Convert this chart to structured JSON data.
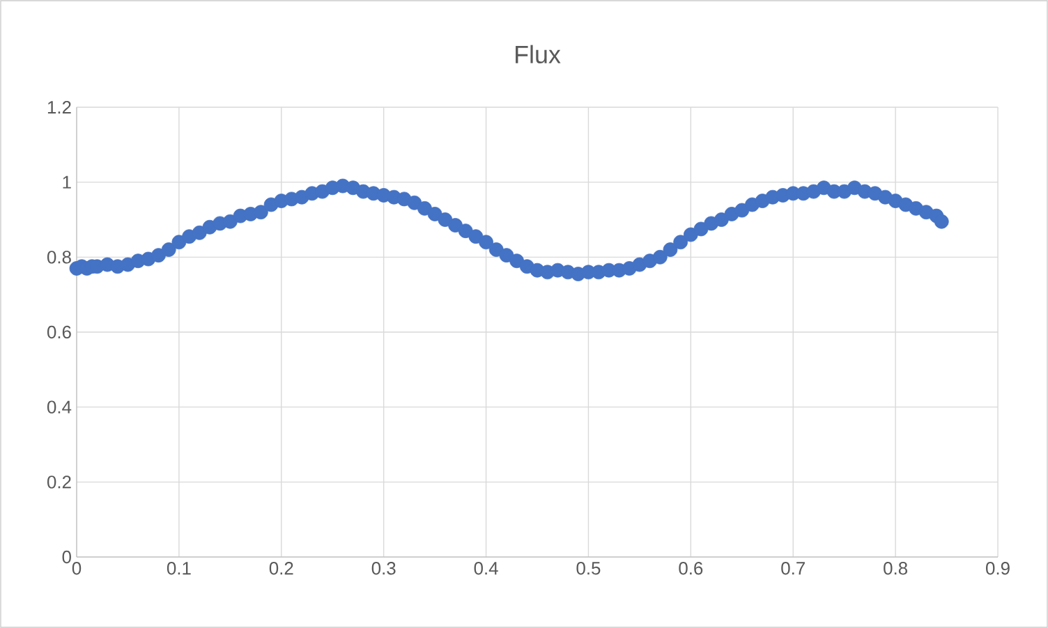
{
  "chart_data": {
    "type": "scatter",
    "title": "Flux",
    "x": [
      0.0,
      0.005,
      0.01,
      0.015,
      0.02,
      0.03,
      0.04,
      0.05,
      0.06,
      0.07,
      0.08,
      0.09,
      0.1,
      0.11,
      0.12,
      0.13,
      0.14,
      0.15,
      0.16,
      0.17,
      0.18,
      0.19,
      0.2,
      0.21,
      0.22,
      0.23,
      0.24,
      0.25,
      0.26,
      0.27,
      0.28,
      0.29,
      0.3,
      0.31,
      0.32,
      0.33,
      0.34,
      0.35,
      0.36,
      0.37,
      0.38,
      0.39,
      0.4,
      0.41,
      0.42,
      0.43,
      0.44,
      0.45,
      0.46,
      0.47,
      0.48,
      0.49,
      0.5,
      0.51,
      0.52,
      0.53,
      0.54,
      0.55,
      0.56,
      0.57,
      0.58,
      0.59,
      0.6,
      0.61,
      0.62,
      0.63,
      0.64,
      0.65,
      0.66,
      0.67,
      0.68,
      0.69,
      0.7,
      0.71,
      0.72,
      0.73,
      0.74,
      0.75,
      0.76,
      0.77,
      0.78,
      0.79,
      0.8,
      0.81,
      0.82,
      0.83,
      0.84,
      0.845
    ],
    "series": [
      {
        "color": "#4472c4",
        "values": [
          0.77,
          0.775,
          0.77,
          0.775,
          0.775,
          0.78,
          0.775,
          0.78,
          0.79,
          0.795,
          0.805,
          0.82,
          0.84,
          0.855,
          0.865,
          0.88,
          0.89,
          0.895,
          0.91,
          0.915,
          0.92,
          0.94,
          0.95,
          0.955,
          0.96,
          0.97,
          0.975,
          0.985,
          0.99,
          0.985,
          0.975,
          0.97,
          0.965,
          0.96,
          0.955,
          0.945,
          0.93,
          0.915,
          0.9,
          0.885,
          0.87,
          0.855,
          0.84,
          0.82,
          0.805,
          0.79,
          0.775,
          0.765,
          0.76,
          0.765,
          0.76,
          0.755,
          0.76,
          0.76,
          0.765,
          0.765,
          0.77,
          0.78,
          0.79,
          0.8,
          0.82,
          0.84,
          0.86,
          0.875,
          0.89,
          0.9,
          0.915,
          0.925,
          0.94,
          0.95,
          0.96,
          0.965,
          0.97,
          0.97,
          0.975,
          0.985,
          0.975,
          0.975,
          0.985,
          0.975,
          0.97,
          0.96,
          0.95,
          0.94,
          0.93,
          0.92,
          0.91,
          0.895
        ]
      }
    ],
    "xlim": [
      0,
      0.9
    ],
    "xticks": [
      0,
      0.1,
      0.2,
      0.3,
      0.4,
      0.5,
      0.6,
      0.7,
      0.8,
      0.9
    ],
    "ylim": [
      0,
      1.2
    ],
    "yticks": [
      0,
      0.2,
      0.4,
      0.6,
      0.8,
      1,
      1.2
    ],
    "grid": true,
    "marker": "circle"
  }
}
